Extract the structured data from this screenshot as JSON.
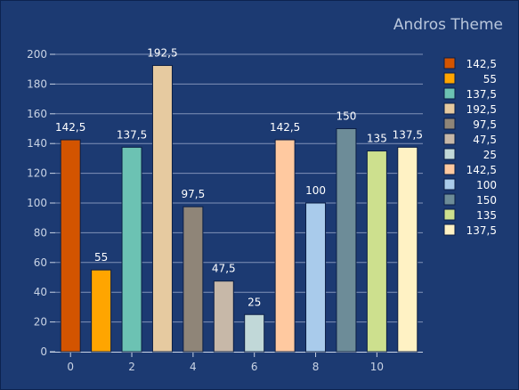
{
  "chart_data": {
    "type": "bar",
    "title": "Andros Theme",
    "xlabel": "",
    "ylabel": "",
    "x": [
      0,
      1,
      2,
      3,
      4,
      5,
      6,
      7,
      8,
      9,
      10,
      11
    ],
    "values": [
      142.5,
      55,
      137.5,
      192.5,
      97.5,
      47.5,
      25,
      142.5,
      100,
      150,
      135,
      137.5
    ],
    "value_labels": [
      "142,5",
      "55",
      "137,5",
      "192,5",
      "97,5",
      "47,5",
      "25",
      "142,5",
      "100",
      "150",
      "135",
      "137,5"
    ],
    "colors": [
      "#d35400",
      "#ffa500",
      "#6cc2b3",
      "#e6caa0",
      "#8f8578",
      "#c7b8a8",
      "#c1d8d8",
      "#ffc9a0",
      "#a9cbeb",
      "#6d8c98",
      "#cde08e",
      "#fff2c4"
    ],
    "ylim": [
      0,
      200
    ],
    "xlim": [
      -0.5,
      11.5
    ],
    "yticks": [
      0,
      20,
      40,
      60,
      80,
      100,
      120,
      140,
      160,
      180,
      200
    ],
    "xticks": [
      0,
      2,
      4,
      6,
      8,
      10
    ],
    "grid": true,
    "legend_position": "right"
  }
}
